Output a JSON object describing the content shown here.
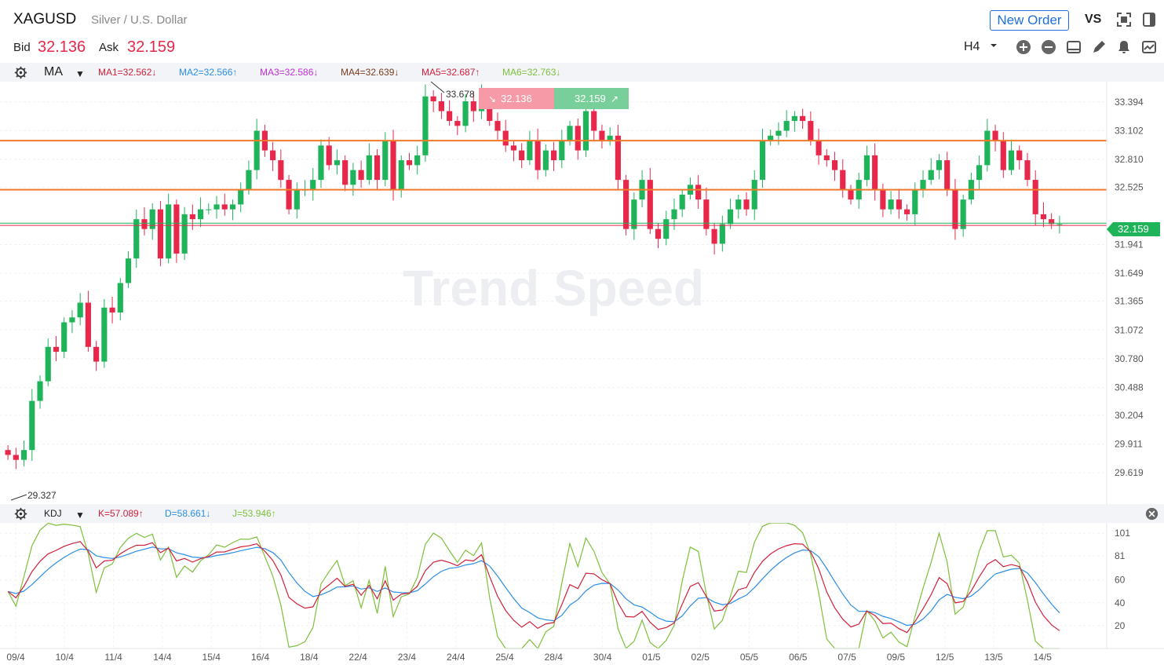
{
  "header": {
    "symbol": "XAGUSD",
    "description": "Silver / U.S. Dollar",
    "bid_label": "Bid",
    "bid_value": "32.136",
    "ask_label": "Ask",
    "ask_value": "32.159",
    "new_order_label": "New Order",
    "vs_label": "VS",
    "timeframe": "H4"
  },
  "main_indicator": {
    "name": "MA",
    "values": [
      {
        "label": "MA1=32.562↓",
        "color": "#d0213b"
      },
      {
        "label": "MA2=32.566↑",
        "color": "#2b8ee6"
      },
      {
        "label": "MA3=32.586↓",
        "color": "#c02fd6"
      },
      {
        "label": "MA4=32.639↓",
        "color": "#7a3d1d"
      },
      {
        "label": "MA5=32.687↑",
        "color": "#d0213b"
      },
      {
        "label": "MA6=32.763↓",
        "color": "#7ec03b"
      }
    ]
  },
  "sub_indicator": {
    "name": "KDJ",
    "values": [
      {
        "label": "K=57.089↑",
        "color": "#d0213b"
      },
      {
        "label": "D=58.661↓",
        "color": "#2b8ee6"
      },
      {
        "label": "J=53.946↑",
        "color": "#7ec03b"
      }
    ]
  },
  "trade_buttons": {
    "sell": "32.136",
    "buy": "32.159"
  },
  "watermark": "Trend Speed",
  "colors": {
    "up": "#1fb45a",
    "down": "#e8284a",
    "support": "#f07a2a",
    "price": "#1fb45a",
    "bid_line": "#e8284a"
  },
  "chart_data": [
    {
      "type": "candlestick",
      "y_ticks": [
        "33.394",
        "33.102",
        "32.810",
        "32.525",
        "31.941",
        "31.649",
        "31.365",
        "31.072",
        "30.780",
        "30.488",
        "30.204",
        "29.911",
        "29.619"
      ],
      "ylim": [
        29.3,
        33.6
      ],
      "x_labels": [
        "09/4",
        "10/4",
        "11/4",
        "14/4",
        "15/4",
        "16/4",
        "18/4",
        "22/4",
        "23/4",
        "24/4",
        "25/4",
        "28/4",
        "30/4",
        "01/5",
        "02/5",
        "05/5",
        "06/5",
        "07/5",
        "09/5",
        "12/5",
        "13/5",
        "14/5"
      ],
      "high_marker": "33.678",
      "low_marker": "29.327",
      "current_price": "32.159",
      "horizontal_lines": [
        33.0,
        32.5
      ],
      "closes": [
        29.8,
        29.75,
        29.85,
        30.35,
        30.55,
        30.9,
        30.85,
        31.15,
        31.2,
        31.35,
        30.9,
        30.75,
        31.3,
        31.25,
        31.55,
        31.8,
        32.2,
        32.1,
        32.3,
        31.8,
        32.35,
        31.85,
        32.25,
        32.2,
        32.3,
        32.3,
        32.35,
        32.3,
        32.35,
        32.5,
        32.7,
        33.1,
        32.9,
        32.8,
        32.6,
        32.3,
        32.5,
        32.5,
        32.6,
        32.95,
        32.75,
        32.8,
        32.55,
        32.7,
        32.6,
        32.85,
        32.6,
        33.0,
        32.5,
        32.8,
        32.75,
        32.85,
        33.45,
        33.4,
        33.3,
        33.2,
        33.15,
        33.4,
        33.3,
        33.45,
        33.2,
        33.1,
        32.95,
        32.9,
        32.8,
        33.0,
        32.7,
        32.9,
        32.8,
        33.0,
        33.15,
        32.9,
        33.3,
        33.1,
        33.0,
        33.05,
        32.6,
        32.1,
        32.4,
        32.6,
        32.1,
        32.0,
        32.2,
        32.3,
        32.45,
        32.55,
        32.4,
        32.1,
        31.95,
        32.15,
        32.3,
        32.4,
        32.3,
        32.6,
        33.0,
        33.05,
        33.1,
        33.2,
        33.25,
        33.2,
        33.0,
        32.85,
        32.8,
        32.7,
        32.5,
        32.4,
        32.6,
        32.85,
        32.5,
        32.3,
        32.4,
        32.3,
        32.25,
        32.5,
        32.6,
        32.7,
        32.8,
        32.5,
        32.1,
        32.4,
        32.6,
        32.75,
        33.1,
        33.0,
        32.7,
        32.9,
        32.8,
        32.6,
        32.25,
        32.2,
        32.15,
        32.15
      ]
    },
    {
      "type": "line",
      "name": "KDJ",
      "y_ticks": [
        "101",
        "81",
        "60",
        "40",
        "20"
      ],
      "ylim": [
        0,
        110
      ],
      "series": [
        {
          "name": "K",
          "color": "#d0213b"
        },
        {
          "name": "D",
          "color": "#2b8ee6"
        },
        {
          "name": "J",
          "color": "#7ec03b"
        }
      ]
    }
  ]
}
